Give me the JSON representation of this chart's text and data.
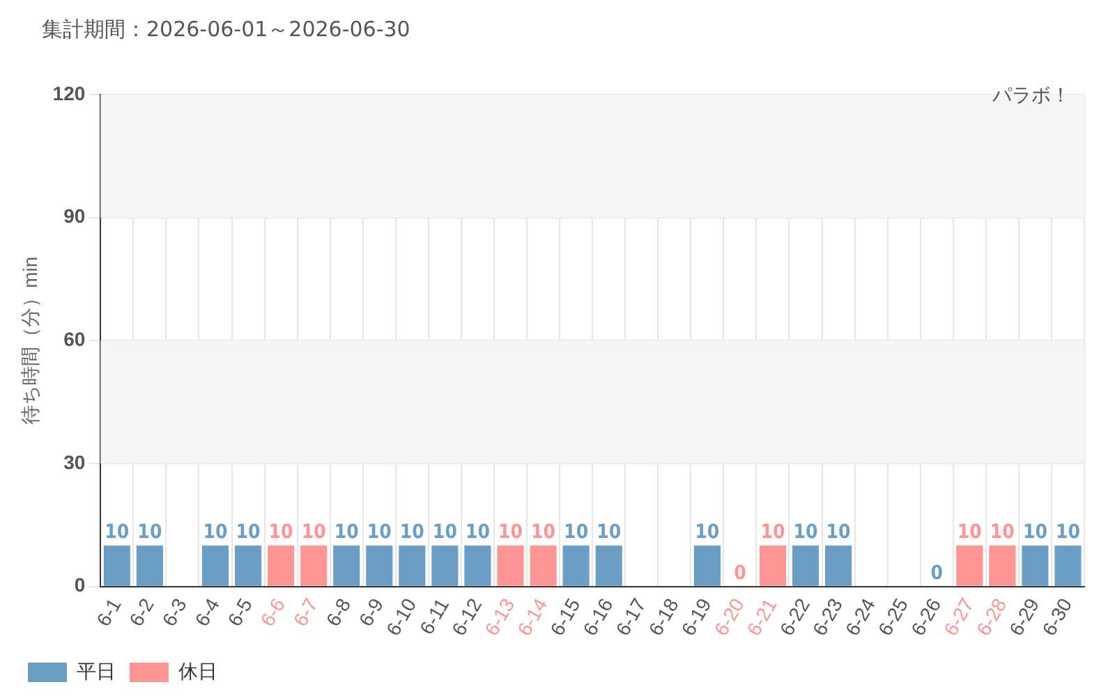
{
  "chart_data": {
    "type": "bar",
    "title": "集計期間：2026-06-01～2026-06-30",
    "subtitle": "パラボ！",
    "ylabel": "待ち時間（分）min",
    "categories": [
      "6-1",
      "6-2",
      "6-3",
      "6-4",
      "6-5",
      "6-6",
      "6-7",
      "6-8",
      "6-9",
      "6-10",
      "6-11",
      "6-12",
      "6-13",
      "6-14",
      "6-15",
      "6-16",
      "6-17",
      "6-18",
      "6-19",
      "6-20",
      "6-21",
      "6-22",
      "6-23",
      "6-24",
      "6-25",
      "6-26",
      "6-27",
      "6-28",
      "6-29",
      "6-30"
    ],
    "series": [
      {
        "name": "平日",
        "color": "#6a9ec4",
        "values": [
          10,
          10,
          null,
          10,
          10,
          null,
          null,
          10,
          10,
          10,
          10,
          10,
          null,
          null,
          10,
          10,
          null,
          null,
          10,
          null,
          null,
          10,
          10,
          null,
          null,
          0,
          null,
          null,
          10,
          10
        ]
      },
      {
        "name": "休日",
        "color": "#ff9494",
        "values": [
          null,
          null,
          null,
          null,
          null,
          10,
          10,
          null,
          null,
          null,
          null,
          null,
          10,
          10,
          null,
          null,
          null,
          null,
          null,
          0,
          10,
          null,
          null,
          null,
          null,
          null,
          10,
          10,
          null,
          null
        ]
      }
    ],
    "stacked": true,
    "ylim": [
      0,
      120
    ],
    "yticks": [
      0,
      30,
      60,
      90,
      120
    ],
    "grid": true,
    "legend": "bottom left",
    "data_labels": true
  }
}
